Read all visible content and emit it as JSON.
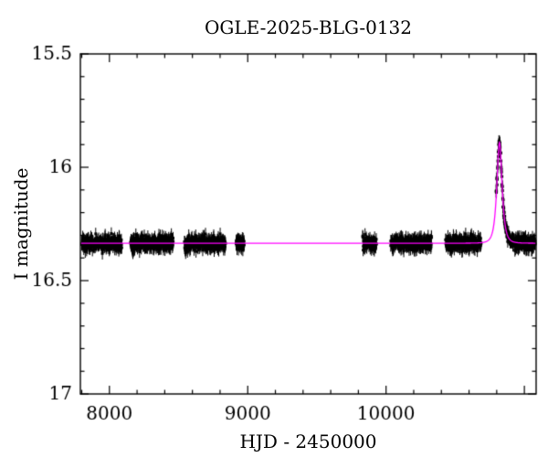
{
  "chart_data": {
    "type": "scatter",
    "title": "OGLE-2025-BLG-0132",
    "xlabel": "HJD - 2450000",
    "ylabel": "I magnitude",
    "xlim": [
      7790,
      11085
    ],
    "ylim": [
      15.5,
      17
    ],
    "y_axis_inverted_magnitude": true,
    "grid": false,
    "legend": "none",
    "x_ticks": [
      {
        "value": 8000,
        "label": "8000"
      },
      {
        "value": 9000,
        "label": "9000"
      },
      {
        "value": 10000,
        "label": "10000"
      }
    ],
    "x_major_tick_step": 1000,
    "x_minor_tick_step": 200,
    "y_ticks": [
      {
        "value": 15.5,
        "label": "15.5"
      },
      {
        "value": 16,
        "label": "16"
      },
      {
        "value": 16.5,
        "label": "16.5"
      },
      {
        "value": 17,
        "label": "17"
      }
    ],
    "y_major_tick_step": 0.5,
    "y_minor_tick_step": 0.1,
    "baseline_mag": 16.335,
    "peak_mag": 15.89,
    "peak_time_hjd": 10820,
    "model": {
      "type": "paczynski_microlensing",
      "t0": 10820,
      "tE": 25,
      "u0": 0.82
    },
    "data_clusters": [
      {
        "t_start": 7800,
        "t_end": 8090,
        "n_points": 200
      },
      {
        "t_start": 8152,
        "t_end": 8462,
        "n_points": 215
      },
      {
        "t_start": 8542,
        "t_end": 8840,
        "n_points": 210
      },
      {
        "t_start": 8915,
        "t_end": 8975,
        "n_points": 42
      },
      {
        "t_start": 9830,
        "t_end": 9932,
        "n_points": 58
      },
      {
        "t_start": 10033,
        "t_end": 10330,
        "n_points": 205
      },
      {
        "t_start": 10430,
        "t_end": 10688,
        "n_points": 185
      },
      {
        "t_start": 10795,
        "t_end": 11080,
        "n_points": 195
      }
    ],
    "point_scatter_sigma_mag": 0.015,
    "error_bar_half_mag": 0.027,
    "colors": {
      "data_points": "#000000",
      "model_curve": "#ff00ff",
      "axes": "#000000",
      "background": "#ffffff"
    }
  }
}
